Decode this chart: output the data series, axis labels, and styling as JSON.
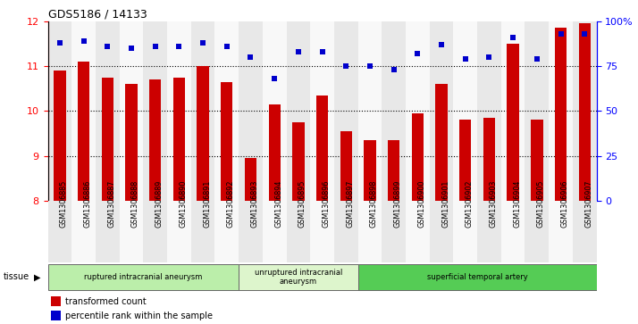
{
  "title": "GDS5186 / 14133",
  "samples": [
    "GSM1306885",
    "GSM1306886",
    "GSM1306887",
    "GSM1306888",
    "GSM1306889",
    "GSM1306890",
    "GSM1306891",
    "GSM1306892",
    "GSM1306893",
    "GSM1306894",
    "GSM1306895",
    "GSM1306896",
    "GSM1306897",
    "GSM1306898",
    "GSM1306899",
    "GSM1306900",
    "GSM1306901",
    "GSM1306902",
    "GSM1306903",
    "GSM1306904",
    "GSM1306905",
    "GSM1306906",
    "GSM1306907"
  ],
  "transformed_count": [
    10.9,
    11.1,
    10.75,
    10.6,
    10.7,
    10.75,
    11.0,
    10.65,
    8.95,
    10.15,
    9.75,
    10.35,
    9.55,
    9.35,
    9.35,
    9.95,
    10.6,
    9.8,
    9.85,
    11.5,
    9.8,
    11.85,
    11.95
  ],
  "percentile_rank": [
    88,
    89,
    86,
    85,
    86,
    86,
    88,
    86,
    80,
    68,
    83,
    83,
    75,
    75,
    73,
    82,
    87,
    79,
    80,
    91,
    79,
    93,
    93
  ],
  "bar_color": "#cc0000",
  "dot_color": "#0000cc",
  "ylim_left": [
    8,
    12
  ],
  "ylim_right": [
    0,
    100
  ],
  "yticks_left": [
    8,
    9,
    10,
    11,
    12
  ],
  "yticks_right": [
    0,
    25,
    50,
    75,
    100
  ],
  "ytick_labels_right": [
    "0",
    "25",
    "50",
    "75",
    "100%"
  ],
  "grid_values": [
    9,
    10,
    11
  ],
  "groups": [
    {
      "label": "ruptured intracranial aneurysm",
      "start": 0,
      "end": 8,
      "color": "#bbeeaa"
    },
    {
      "label": "unruptured intracranial\naneurysm",
      "start": 8,
      "end": 13,
      "color": "#ddf5cc"
    },
    {
      "label": "superficial temporal artery",
      "start": 13,
      "end": 23,
      "color": "#55cc55"
    }
  ],
  "tissue_label": "tissue",
  "legend_items": [
    {
      "color": "#cc0000",
      "label": "transformed count"
    },
    {
      "color": "#0000cc",
      "label": "percentile rank within the sample"
    }
  ],
  "col_colors": [
    "#e8e8e8",
    "#f8f8f8"
  ],
  "bg_color": "#ffffff"
}
